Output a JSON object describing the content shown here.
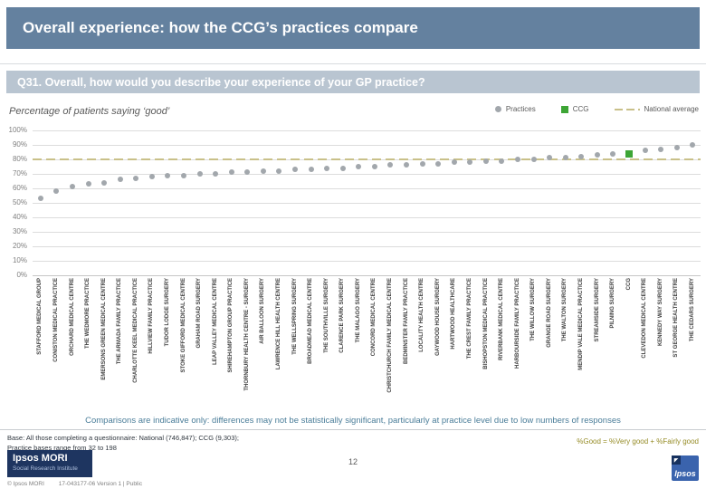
{
  "header": {
    "title": "Overall experience: how the CCG’s practices compare"
  },
  "question": {
    "label": "Q31. Overall, how would you describe your experience of your GP practice?"
  },
  "chart_data": {
    "type": "scatter",
    "title": "Percentage of patients saying ‘good’",
    "ylim": [
      0,
      100
    ],
    "ytick_step": 10,
    "ytick_suffix": "%",
    "grid": true,
    "legend_position": "top-right",
    "legend": {
      "practices": "Practices",
      "ccg": "CCG",
      "national": "National average"
    },
    "national_average": 80,
    "colors": {
      "practice": "#a2a7ac",
      "ccg": "#3da535",
      "national": "#c9c089"
    },
    "points": [
      {
        "label": "STAFFORD MEDICAL GROUP",
        "value": 53,
        "type": "practice"
      },
      {
        "label": "CONISTON MEDICAL PRACTICE",
        "value": 58,
        "type": "practice"
      },
      {
        "label": "ORCHARD MEDICAL CENTRE",
        "value": 61,
        "type": "practice"
      },
      {
        "label": "THE WEDMORE PRACTICE",
        "value": 63,
        "type": "practice"
      },
      {
        "label": "EMERSONS GREEN MEDICAL CENTRE",
        "value": 64,
        "type": "practice"
      },
      {
        "label": "THE ARMADA FAMILY PRACTICE",
        "value": 66,
        "type": "practice"
      },
      {
        "label": "CHARLOTTE KEEL MEDICAL PRACTICE",
        "value": 67,
        "type": "practice"
      },
      {
        "label": "HILLVIEW FAMILY PRACTICE",
        "value": 68,
        "type": "practice"
      },
      {
        "label": "TUDOR LODGE SURGERY",
        "value": 69,
        "type": "practice"
      },
      {
        "label": "STOKE GIFFORD MEDICAL CENTRE",
        "value": 69,
        "type": "practice"
      },
      {
        "label": "GRAHAM ROAD SURGERY",
        "value": 70,
        "type": "practice"
      },
      {
        "label": "LEAP VALLEY MEDICAL CENTRE",
        "value": 70,
        "type": "practice"
      },
      {
        "label": "SHIREHAMPTON GROUP PRACTICE",
        "value": 71,
        "type": "practice"
      },
      {
        "label": "THORNBURY HEALTH CENTRE - SURGERY",
        "value": 71,
        "type": "practice"
      },
      {
        "label": "AIR BALLOON SURGERY",
        "value": 72,
        "type": "practice"
      },
      {
        "label": "LAWRENCE HILL HEALTH CENTRE",
        "value": 72,
        "type": "practice"
      },
      {
        "label": "THE WELLSPRING SURGERY",
        "value": 73,
        "type": "practice"
      },
      {
        "label": "BROADMEAD MEDICAL CENTRE",
        "value": 73,
        "type": "practice"
      },
      {
        "label": "THE SOUTHVILLE SURGERY",
        "value": 74,
        "type": "practice"
      },
      {
        "label": "CLARENCE PARK SURGERY",
        "value": 74,
        "type": "practice"
      },
      {
        "label": "THE MALAGO SURGERY",
        "value": 75,
        "type": "practice"
      },
      {
        "label": "CONCORD MEDICAL CENTRE",
        "value": 75,
        "type": "practice"
      },
      {
        "label": "CHRISTCHURCH FAMILY MEDICAL CENTRE",
        "value": 76,
        "type": "practice"
      },
      {
        "label": "BEDMINSTER FAMILY PRACTICE",
        "value": 76,
        "type": "practice"
      },
      {
        "label": "LOCALITY HEALTH CENTRE",
        "value": 77,
        "type": "practice"
      },
      {
        "label": "GAYWOOD HOUSE SURGERY",
        "value": 77,
        "type": "practice"
      },
      {
        "label": "HARTWOOD HEALTHCARE",
        "value": 78,
        "type": "practice"
      },
      {
        "label": "THE CREST FAMILY PRACTICE",
        "value": 78,
        "type": "practice"
      },
      {
        "label": "BISHOPSTON MEDICAL PRACTICE",
        "value": 79,
        "type": "practice"
      },
      {
        "label": "RIVERBANK MEDICAL CENTRE",
        "value": 79,
        "type": "practice"
      },
      {
        "label": "HARBOURSIDE FAMILY PRACTICE",
        "value": 80,
        "type": "practice"
      },
      {
        "label": "THE WILLOW SURGERY",
        "value": 80,
        "type": "practice"
      },
      {
        "label": "GRANGE ROAD SURGERY",
        "value": 81,
        "type": "practice"
      },
      {
        "label": "THE WALTON SURGERY",
        "value": 81,
        "type": "practice"
      },
      {
        "label": "MENDIP VALE MEDICAL PRACTICE",
        "value": 82,
        "type": "practice"
      },
      {
        "label": "STREAMSIDE SURGERY",
        "value": 83,
        "type": "practice"
      },
      {
        "label": "PILNING SURGERY",
        "value": 84,
        "type": "practice"
      },
      {
        "label": "CCG",
        "value": 84,
        "type": "ccg"
      },
      {
        "label": "CLEVEDON MEDICAL CENTRE",
        "value": 86,
        "type": "practice"
      },
      {
        "label": "KENNEDY WAY SURGERY",
        "value": 87,
        "type": "practice"
      },
      {
        "label": "ST GEORGE HEALTH CENTRE",
        "value": 88,
        "type": "practice"
      },
      {
        "label": "THE CEDARS SURGERY",
        "value": 90,
        "type": "practice"
      }
    ]
  },
  "note": "Comparisons are indicative only: differences may not be statistically significant, particularly at practice level due to low numbers of responses",
  "footer": {
    "base_line1": "Base: All those completing a questionnaire: National (746,847); CCG (9,303);",
    "base_line2": "Practice bases range from 32 to 198",
    "good_formula": "%Good = %Very good + %Fairly good",
    "page_number": "12",
    "copyright": "© Ipsos MORI",
    "reference": "17-043177-06 Version 1 | Public",
    "logo_title": "Ipsos MORI",
    "logo_subtitle": "Social Research Institute",
    "ipsos_brand": "Ipsos"
  }
}
